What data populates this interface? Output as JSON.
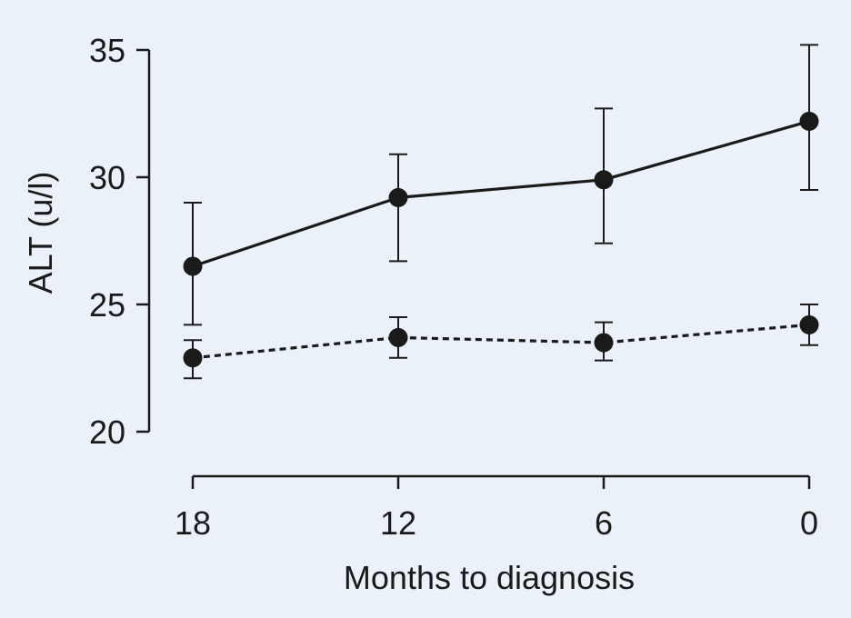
{
  "chart_data": {
    "type": "line",
    "title": "",
    "xlabel": "Months to diagnosis",
    "ylabel": "ALT (u/l)",
    "x": [
      18,
      12,
      6,
      0
    ],
    "x_tick_labels": [
      "18",
      "12",
      "6",
      "0"
    ],
    "y_ticks": [
      20,
      25,
      30,
      35
    ],
    "y_tick_labels": [
      "20",
      "25",
      "30",
      "35"
    ],
    "ylim": [
      20,
      35
    ],
    "grid": false,
    "legend": "none",
    "series": [
      {
        "line_style": "solid",
        "values": [
          26.5,
          29.2,
          29.9,
          32.2
        ],
        "error_low": [
          24.2,
          26.7,
          27.4,
          29.5
        ],
        "error_high": [
          29.0,
          30.9,
          32.7,
          35.2
        ]
      },
      {
        "line_style": "dashed",
        "values": [
          22.9,
          23.7,
          23.5,
          24.2
        ],
        "error_low": [
          22.1,
          22.9,
          22.8,
          23.4
        ],
        "error_high": [
          23.6,
          24.5,
          24.3,
          25.0
        ]
      }
    ],
    "colors": {
      "background": "#eaf1f9",
      "ink": "#1a1a1a"
    }
  }
}
